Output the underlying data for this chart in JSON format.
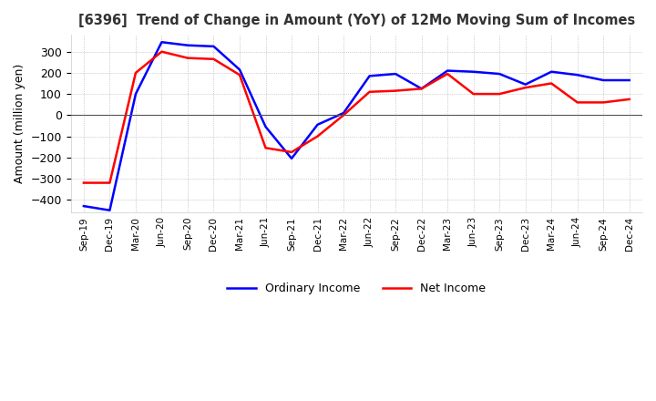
{
  "title": "[6396]  Trend of Change in Amount (YoY) of 12Mo Moving Sum of Incomes",
  "ylabel": "Amount (million yen)",
  "ylim": [
    -460,
    380
  ],
  "yticks": [
    -400,
    -300,
    -200,
    -100,
    0,
    100,
    200,
    300
  ],
  "background_color": "#ffffff",
  "plot_background_color": "#ffffff",
  "grid_color": "#aaaaaa",
  "ordinary_income_color": "#0000ff",
  "net_income_color": "#ff0000",
  "x_labels": [
    "Sep-19",
    "Dec-19",
    "Mar-20",
    "Jun-20",
    "Sep-20",
    "Dec-20",
    "Mar-21",
    "Jun-21",
    "Sep-21",
    "Dec-21",
    "Mar-22",
    "Jun-22",
    "Sep-22",
    "Dec-22",
    "Mar-23",
    "Jun-23",
    "Sep-23",
    "Dec-23",
    "Mar-24",
    "Jun-24",
    "Sep-24",
    "Dec-24"
  ],
  "ordinary_income": [
    -430,
    -450,
    100,
    345,
    330,
    325,
    215,
    -55,
    -205,
    -45,
    10,
    185,
    195,
    125,
    210,
    205,
    195,
    145,
    205,
    190,
    165,
    165
  ],
  "net_income": [
    -320,
    -320,
    200,
    300,
    270,
    265,
    190,
    -155,
    -175,
    -100,
    0,
    110,
    115,
    125,
    195,
    100,
    100,
    130,
    150,
    60,
    60,
    75
  ]
}
